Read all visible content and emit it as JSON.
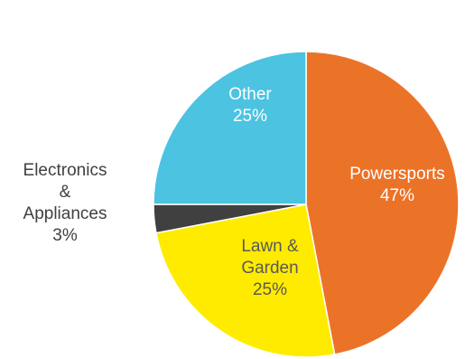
{
  "chart_data": {
    "type": "pie",
    "title": "",
    "slices": [
      {
        "label_lines": [
          "Powersports",
          "47%"
        ],
        "value": 47,
        "color": "#EB7328"
      },
      {
        "label_lines": [
          "Lawn &",
          "Garden",
          "25%"
        ],
        "value": 25,
        "color": "#FFEB00"
      },
      {
        "label_lines": [
          "Electronics",
          "&",
          "Appliances",
          "3%"
        ],
        "value": 3,
        "color": "#404040"
      },
      {
        "label_lines": [
          "Other",
          "25%"
        ],
        "value": 25,
        "color": "#4BC3E1"
      }
    ],
    "start_angle_deg": 0,
    "direction": "clockwise",
    "legend": "none",
    "label_colors": {
      "inside": "#ffffff",
      "inside_on_light": "#595959",
      "outside": "#404040"
    }
  }
}
